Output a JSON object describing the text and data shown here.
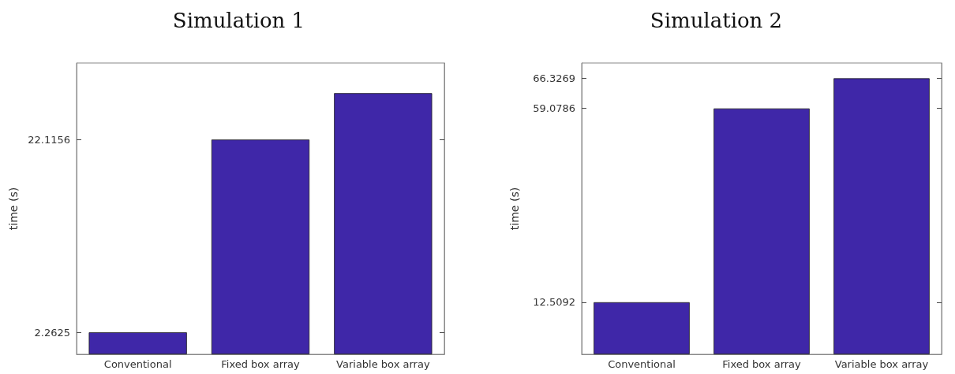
{
  "chart_data": [
    {
      "type": "bar",
      "title": "Simulation 1",
      "ylabel": "time (s)",
      "categories": [
        "Conventional",
        "Fixed box array",
        "Variable box array"
      ],
      "values": [
        2.2625,
        22.1156,
        26.9
      ],
      "color": "#3f27a8",
      "ylim": [
        0,
        30
      ],
      "yticks": [
        2.2625,
        22.1156
      ]
    },
    {
      "type": "bar",
      "title": "Simulation 2",
      "ylabel": "time (s)",
      "categories": [
        "Conventional",
        "Fixed box array",
        "Variable box array"
      ],
      "values": [
        12.5092,
        59.0786,
        66.3269
      ],
      "color": "#3f27a8",
      "ylim": [
        0,
        70
      ],
      "yticks": [
        12.5092,
        59.0786,
        66.3269
      ]
    }
  ]
}
